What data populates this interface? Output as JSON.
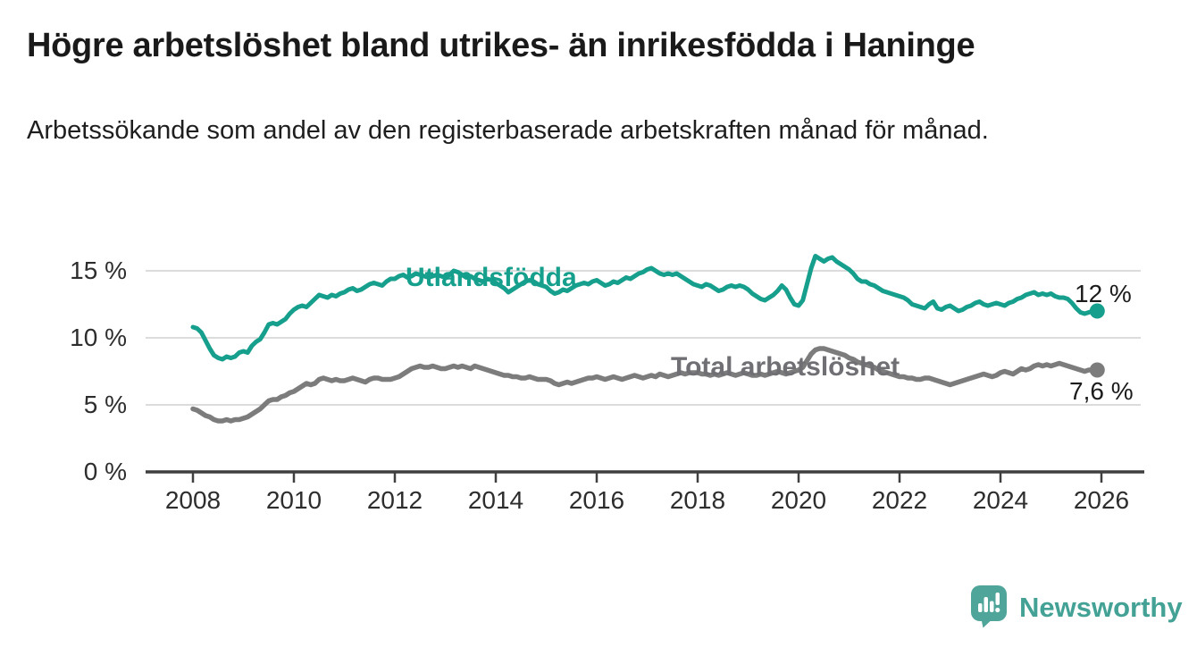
{
  "header": {
    "title": "Högre arbetslöshet bland utrikes- än inrikesfödda i Haninge",
    "subtitle": "Arbetssökande som andel av den registerbaserade arbetskraften månad för månad."
  },
  "chart_data": {
    "type": "line",
    "x_frequency": "monthly",
    "x_start": "2008-01",
    "x_end": "2025-12",
    "xlim": [
      2007.05,
      2026.85
    ],
    "ylim": [
      0,
      16.5
    ],
    "grid": "horizontal",
    "legend": "inline-labels",
    "y_ticks": [
      {
        "value": 0,
        "label": "0 %"
      },
      {
        "value": 5,
        "label": "5 %"
      },
      {
        "value": 10,
        "label": "10 %"
      },
      {
        "value": 15,
        "label": "15 %"
      }
    ],
    "x_ticks": [
      {
        "year": 2008,
        "label": "2008"
      },
      {
        "year": 2010,
        "label": "2010"
      },
      {
        "year": 2012,
        "label": "2012"
      },
      {
        "year": 2014,
        "label": "2014"
      },
      {
        "year": 2016,
        "label": "2016"
      },
      {
        "year": 2018,
        "label": "2018"
      },
      {
        "year": 2020,
        "label": "2020"
      },
      {
        "year": 2022,
        "label": "2022"
      },
      {
        "year": 2024,
        "label": "2024"
      },
      {
        "year": 2026,
        "label": "2026"
      }
    ],
    "series": [
      {
        "name": "Utlandsfödda",
        "color": "#159f8c",
        "start_year": 2008,
        "end_label": "12 %",
        "end_value": 12.0,
        "values": [
          10.8,
          10.7,
          10.4,
          9.8,
          9.2,
          8.7,
          8.5,
          8.4,
          8.6,
          8.5,
          8.6,
          8.9,
          9.0,
          8.9,
          9.4,
          9.7,
          9.9,
          10.4,
          11.0,
          11.1,
          11.0,
          11.2,
          11.4,
          11.8,
          12.1,
          12.3,
          12.4,
          12.3,
          12.6,
          12.9,
          13.2,
          13.1,
          13.0,
          13.2,
          13.1,
          13.3,
          13.4,
          13.6,
          13.7,
          13.5,
          13.6,
          13.8,
          14.0,
          14.1,
          14.0,
          13.9,
          14.2,
          14.4,
          14.4,
          14.6,
          14.7,
          14.5,
          14.6,
          14.8,
          14.7,
          14.6,
          14.5,
          14.6,
          14.7,
          14.6,
          14.5,
          14.7,
          15.0,
          14.9,
          14.7,
          14.5,
          14.6,
          14.4,
          14.3,
          14.2,
          14.4,
          14.3,
          14.1,
          13.9,
          13.7,
          13.4,
          13.6,
          13.8,
          14.0,
          14.2,
          14.3,
          14.2,
          14.0,
          13.9,
          13.8,
          13.5,
          13.3,
          13.4,
          13.6,
          13.5,
          13.7,
          13.9,
          14.0,
          14.1,
          14.0,
          14.2,
          14.3,
          14.1,
          13.9,
          14.0,
          14.2,
          14.1,
          14.3,
          14.5,
          14.4,
          14.6,
          14.8,
          14.9,
          15.1,
          15.2,
          15.0,
          14.8,
          14.7,
          14.8,
          14.7,
          14.8,
          14.6,
          14.4,
          14.2,
          14.0,
          13.9,
          13.8,
          14.0,
          13.9,
          13.7,
          13.5,
          13.6,
          13.8,
          13.9,
          13.8,
          13.9,
          13.8,
          13.6,
          13.3,
          13.1,
          12.9,
          12.8,
          13.0,
          13.2,
          13.5,
          13.9,
          13.6,
          13.0,
          12.5,
          12.4,
          12.8,
          14.0,
          15.2,
          16.1,
          15.9,
          15.7,
          15.9,
          16.0,
          15.7,
          15.5,
          15.3,
          15.1,
          14.8,
          14.4,
          14.2,
          14.2,
          14.0,
          13.9,
          13.7,
          13.5,
          13.4,
          13.3,
          13.2,
          13.1,
          13.0,
          12.8,
          12.5,
          12.4,
          12.3,
          12.2,
          12.5,
          12.7,
          12.2,
          12.1,
          12.3,
          12.4,
          12.2,
          12.0,
          12.1,
          12.3,
          12.4,
          12.6,
          12.7,
          12.5,
          12.4,
          12.5,
          12.6,
          12.5,
          12.4,
          12.6,
          12.7,
          12.9,
          13.0,
          13.2,
          13.3,
          13.4,
          13.2,
          13.3,
          13.2,
          13.3,
          13.1,
          13.0,
          13.0,
          12.9,
          12.6,
          12.2,
          11.9,
          11.8,
          11.9,
          12.0,
          12.0
        ]
      },
      {
        "name": "Total arbetslöshet",
        "color": "#7c7c7c",
        "start_year": 2008,
        "end_label": "7,6 %",
        "end_value": 7.6,
        "values": [
          4.7,
          4.6,
          4.4,
          4.2,
          4.1,
          3.9,
          3.8,
          3.8,
          3.9,
          3.8,
          3.9,
          3.9,
          4.0,
          4.1,
          4.3,
          4.5,
          4.7,
          5.0,
          5.3,
          5.4,
          5.4,
          5.6,
          5.7,
          5.9,
          6.0,
          6.2,
          6.4,
          6.6,
          6.5,
          6.6,
          6.9,
          7.0,
          6.9,
          6.8,
          6.9,
          6.8,
          6.8,
          6.9,
          7.0,
          6.9,
          6.8,
          6.7,
          6.9,
          7.0,
          7.0,
          6.9,
          6.9,
          6.9,
          7.0,
          7.1,
          7.3,
          7.5,
          7.7,
          7.8,
          7.9,
          7.8,
          7.8,
          7.9,
          7.8,
          7.7,
          7.7,
          7.8,
          7.9,
          7.8,
          7.9,
          7.8,
          7.7,
          7.9,
          7.8,
          7.7,
          7.6,
          7.5,
          7.4,
          7.3,
          7.2,
          7.2,
          7.1,
          7.1,
          7.0,
          7.0,
          7.1,
          7.0,
          6.9,
          6.9,
          6.9,
          6.8,
          6.6,
          6.5,
          6.6,
          6.7,
          6.6,
          6.7,
          6.8,
          6.9,
          7.0,
          7.0,
          7.1,
          7.0,
          6.9,
          7.0,
          7.1,
          7.0,
          6.9,
          7.0,
          7.1,
          7.2,
          7.1,
          7.0,
          7.1,
          7.2,
          7.1,
          7.3,
          7.2,
          7.1,
          7.2,
          7.3,
          7.4,
          7.3,
          7.4,
          7.4,
          7.4,
          7.3,
          7.3,
          7.2,
          7.3,
          7.2,
          7.3,
          7.4,
          7.3,
          7.2,
          7.3,
          7.4,
          7.3,
          7.2,
          7.2,
          7.3,
          7.2,
          7.3,
          7.4,
          7.5,
          7.4,
          7.3,
          7.4,
          7.5,
          7.6,
          7.8,
          8.3,
          8.8,
          9.1,
          9.2,
          9.2,
          9.1,
          9.0,
          8.9,
          8.8,
          8.7,
          8.5,
          8.4,
          8.2,
          8.1,
          8.0,
          7.9,
          7.8,
          7.6,
          7.5,
          7.4,
          7.3,
          7.2,
          7.1,
          7.1,
          7.0,
          7.0,
          6.9,
          6.9,
          7.0,
          7.0,
          6.9,
          6.8,
          6.7,
          6.6,
          6.5,
          6.6,
          6.7,
          6.8,
          6.9,
          7.0,
          7.1,
          7.2,
          7.3,
          7.2,
          7.1,
          7.2,
          7.4,
          7.5,
          7.4,
          7.3,
          7.5,
          7.7,
          7.6,
          7.7,
          7.9,
          8.0,
          7.9,
          8.0,
          7.9,
          8.0,
          8.1,
          8.0,
          7.9,
          7.8,
          7.7,
          7.6,
          7.5,
          7.6,
          7.6,
          7.6
        ]
      }
    ]
  },
  "footer": {
    "brand": "Newsworthy",
    "logo_icon": "newsworthy-bubble-chart-icon",
    "brand_color": "#43a295"
  },
  "colors": {
    "background": "#ffffff",
    "title": "#1a1a1a",
    "axis_line": "#3f3f3f",
    "gridline": "#dcdcdc",
    "tick_text": "#2d2d2d",
    "series_utlandsfodda": "#159f8c",
    "series_total": "#7c7c7c"
  }
}
